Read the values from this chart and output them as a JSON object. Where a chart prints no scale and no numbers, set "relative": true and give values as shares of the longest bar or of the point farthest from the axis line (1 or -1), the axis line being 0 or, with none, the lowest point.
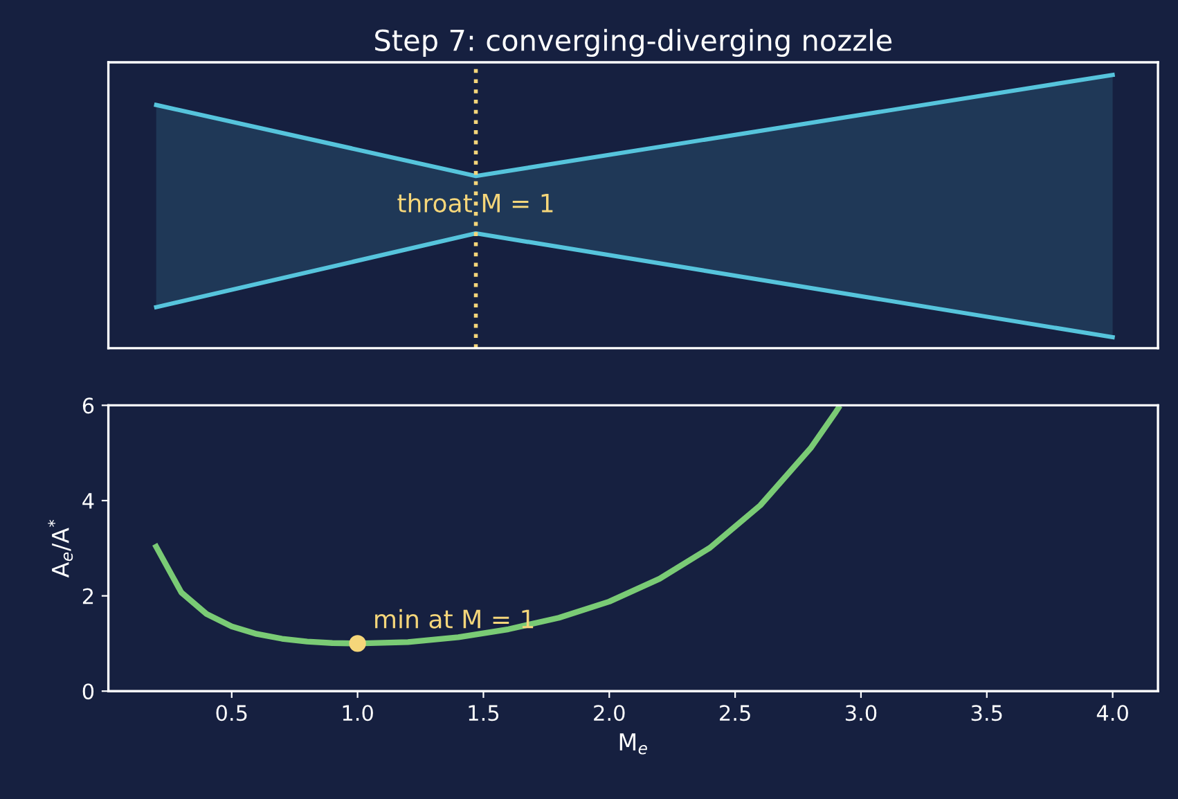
{
  "chart_data": [
    {
      "type": "line",
      "title": "Step 7: converging-diverging nozzle",
      "relative": true,
      "tick_labels": false,
      "xlim": [
        0.01,
        4.18
      ],
      "grid": false,
      "legend": false,
      "series": [
        {
          "color": "#56c4dc",
          "x": [
            0.2,
            1.47,
            4.0
          ],
          "values": [
            0.89,
            0.63,
            1.0
          ],
          "lower": [
            0.15,
            0.42,
            0.04
          ],
          "upper": [
            0.89,
            0.63,
            1.0
          ]
        },
        {
          "color": "#56c4dc",
          "x": [
            0.2,
            1.47,
            4.0
          ],
          "values": [
            0.15,
            0.42,
            0.04
          ]
        }
      ],
      "ref_lines": [
        {
          "axis": "x",
          "value": 1.47,
          "label": "throat M = 1",
          "color": "#f5d67a",
          "line_style": "dotted"
        }
      ]
    },
    {
      "type": "line",
      "xlabel": "M$_{e}$",
      "ylabel": "A$_{e}$/A$^{*}$",
      "xlim": [
        0.01,
        4.18
      ],
      "ylim": [
        0,
        6
      ],
      "xticks": [
        0.5,
        {
          "value": 1,
          "label": "1.0"
        },
        1.5,
        {
          "value": 2,
          "label": "2.0"
        },
        2.5,
        {
          "value": 3,
          "label": "3.0"
        },
        3.5,
        {
          "value": 4,
          "label": "4.0"
        }
      ],
      "yticks": [
        0,
        2,
        4,
        6
      ],
      "grid": false,
      "legend": false,
      "series": [
        {
          "color": "#7acb75",
          "x": [
            0.2,
            0.3,
            0.4,
            0.5,
            0.6,
            0.7,
            0.8,
            0.9,
            1.0,
            1.2,
            1.4,
            1.6,
            1.8,
            2.0,
            2.2,
            2.4,
            2.6,
            2.8,
            2.9,
            2.91
          ],
          "values": [
            3.03,
            2.07,
            1.62,
            1.36,
            1.2,
            1.1,
            1.04,
            1.01,
            1.0,
            1.03,
            1.13,
            1.3,
            1.54,
            1.88,
            2.36,
            3.01,
            3.9,
            5.1,
            5.86,
            5.94
          ]
        },
        {
          "type": "scatter",
          "color": "#f5d67a",
          "marker": "circle",
          "x": [
            1.0
          ],
          "values": [
            1.0
          ]
        }
      ],
      "annotations": [
        {
          "text": "min at M = 1",
          "x": 1.0,
          "y": 1.0
        }
      ]
    }
  ]
}
